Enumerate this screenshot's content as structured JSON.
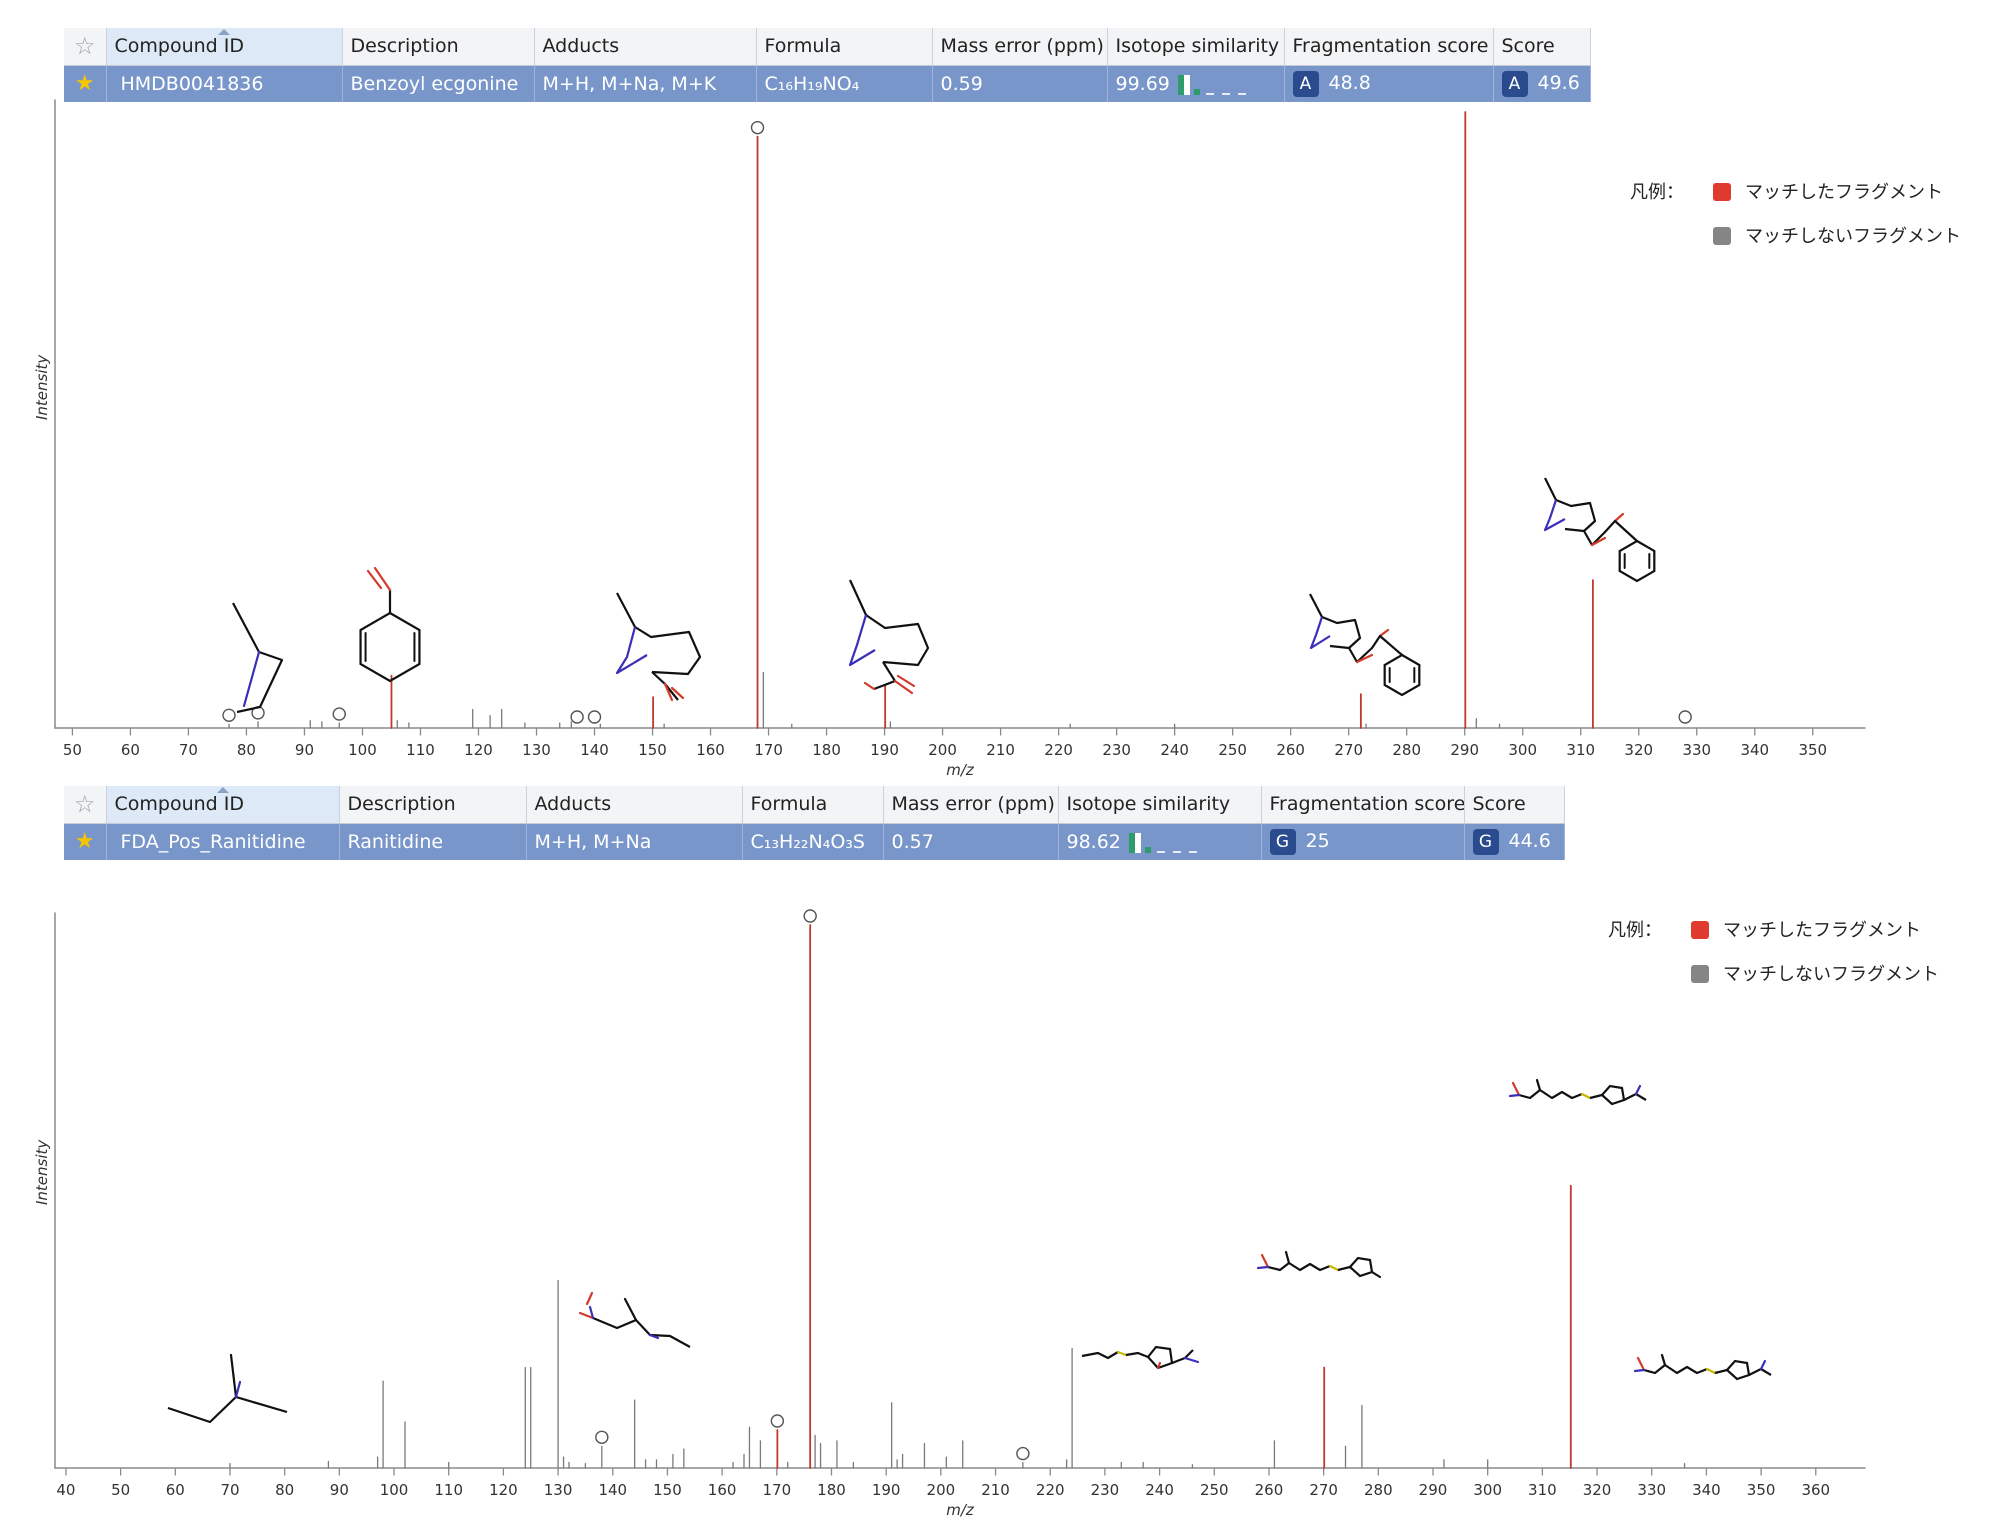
{
  "colors": {
    "matched": "#c0392b",
    "unmatched": "#7a7a7a",
    "legend_matched": "#e03a2f",
    "legend_unmatched": "#858585",
    "header_bg": "#f3f4f6",
    "row_bg": "#7896c9",
    "badge_bg": "#2a4c8e",
    "star": "#f6c400"
  },
  "columns": [
    "Compound ID",
    "Description",
    "Adducts",
    "Formula",
    "Mass error (ppm)",
    "Isotope similarity",
    "Fragmentation score",
    "Score"
  ],
  "legend": {
    "title": "凡例：",
    "matched": "マッチしたフラグメント",
    "unmatched": "マッチしないフラグメント"
  },
  "panels": [
    {
      "compound": {
        "id": "HMDB0041836",
        "description": "Benzoyl ecgonine",
        "adducts": "M+H, M+Na, M+K",
        "formula": "C₁₆H₁₉NO₄",
        "mass_error": "0.59",
        "isotope_similarity": "99.69",
        "frag_grade": "A",
        "frag_score": "48.8",
        "score_grade": "A",
        "score": "49.6"
      }
    },
    {
      "compound": {
        "id": "FDA_Pos_Ranitidine",
        "description": "Ranitidine",
        "adducts": "M+H, M+Na",
        "formula": "C₁₃H₂₂N₄O₃S",
        "mass_error": "0.57",
        "isotope_similarity": "98.62",
        "frag_grade": "G",
        "frag_score": "25",
        "score_grade": "G",
        "score": "44.6"
      }
    }
  ],
  "chart_data": [
    {
      "type": "bar",
      "xlabel": "m/z",
      "ylabel": "Intensity",
      "xlim": [
        47,
        359
      ],
      "ylim": [
        0,
        100
      ],
      "ticks": [
        50,
        60,
        70,
        80,
        90,
        100,
        110,
        120,
        130,
        140,
        150,
        160,
        170,
        180,
        190,
        200,
        210,
        220,
        230,
        240,
        250,
        260,
        270,
        280,
        290,
        300,
        310,
        320,
        330,
        340,
        350
      ],
      "matched": [
        {
          "mz": 105.0,
          "y": 8.5
        },
        {
          "mz": 150.1,
          "y": 5
        },
        {
          "mz": 168.1,
          "y": 96
        },
        {
          "mz": 190.1,
          "y": 7
        },
        {
          "mz": 272.1,
          "y": 5.5
        },
        {
          "mz": 290.1,
          "y": 100
        },
        {
          "mz": 312.1,
          "y": 24
        }
      ],
      "unmatched": [
        {
          "mz": 77,
          "y": 0.6
        },
        {
          "mz": 82,
          "y": 1
        },
        {
          "mz": 91,
          "y": 1.2
        },
        {
          "mz": 93,
          "y": 1
        },
        {
          "mz": 96,
          "y": 0.8
        },
        {
          "mz": 106,
          "y": 1.2
        },
        {
          "mz": 108,
          "y": 0.8
        },
        {
          "mz": 119,
          "y": 3
        },
        {
          "mz": 122,
          "y": 2
        },
        {
          "mz": 124,
          "y": 3
        },
        {
          "mz": 128,
          "y": 0.8
        },
        {
          "mz": 134,
          "y": 0.8
        },
        {
          "mz": 136,
          "y": 1
        },
        {
          "mz": 141,
          "y": 0.6
        },
        {
          "mz": 152,
          "y": 0.6
        },
        {
          "mz": 169.1,
          "y": 9
        },
        {
          "mz": 174,
          "y": 0.6
        },
        {
          "mz": 191,
          "y": 1
        },
        {
          "mz": 222,
          "y": 0.6
        },
        {
          "mz": 240,
          "y": 0.6
        },
        {
          "mz": 273,
          "y": 0.6
        },
        {
          "mz": 292,
          "y": 1.5
        },
        {
          "mz": 296,
          "y": 0.6
        }
      ],
      "markers": [
        77.0,
        82.0,
        96.0,
        137.0,
        140.0,
        168.1,
        328.0
      ]
    },
    {
      "type": "bar",
      "xlabel": "m/z",
      "ylabel": "Intensity",
      "xlim": [
        38,
        369
      ],
      "ylim": [
        0,
        100
      ],
      "ticks": [
        40,
        50,
        60,
        70,
        80,
        90,
        100,
        110,
        120,
        130,
        140,
        150,
        160,
        170,
        180,
        190,
        200,
        210,
        220,
        230,
        240,
        250,
        260,
        270,
        280,
        290,
        300,
        310,
        320,
        330,
        340,
        350,
        360
      ],
      "matched": [
        {
          "mz": 170.1,
          "y": 7
        },
        {
          "mz": 176.1,
          "y": 100
        },
        {
          "mz": 270.1,
          "y": 18.5
        },
        {
          "mz": 315.2,
          "y": 52
        }
      ],
      "unmatched": [
        {
          "mz": 70,
          "y": 0.8
        },
        {
          "mz": 88,
          "y": 1.2
        },
        {
          "mz": 97,
          "y": 2
        },
        {
          "mz": 98,
          "y": 16
        },
        {
          "mz": 102,
          "y": 8.5
        },
        {
          "mz": 110,
          "y": 1
        },
        {
          "mz": 124,
          "y": 18.5
        },
        {
          "mz": 125,
          "y": 18.5
        },
        {
          "mz": 130,
          "y": 34.5
        },
        {
          "mz": 131,
          "y": 2
        },
        {
          "mz": 132,
          "y": 1
        },
        {
          "mz": 135,
          "y": 0.8
        },
        {
          "mz": 138,
          "y": 4
        },
        {
          "mz": 144,
          "y": 12.5
        },
        {
          "mz": 146,
          "y": 1.5
        },
        {
          "mz": 148,
          "y": 1.5
        },
        {
          "mz": 151,
          "y": 2.5
        },
        {
          "mz": 153,
          "y": 3.5
        },
        {
          "mz": 162,
          "y": 1
        },
        {
          "mz": 164,
          "y": 2.5
        },
        {
          "mz": 165,
          "y": 7.5
        },
        {
          "mz": 167,
          "y": 5
        },
        {
          "mz": 172,
          "y": 1
        },
        {
          "mz": 177,
          "y": 6
        },
        {
          "mz": 178,
          "y": 4.5
        },
        {
          "mz": 181,
          "y": 5
        },
        {
          "mz": 184,
          "y": 1
        },
        {
          "mz": 191,
          "y": 12
        },
        {
          "mz": 192,
          "y": 1.5
        },
        {
          "mz": 193,
          "y": 2.5
        },
        {
          "mz": 197,
          "y": 4.5
        },
        {
          "mz": 201,
          "y": 2
        },
        {
          "mz": 204,
          "y": 5
        },
        {
          "mz": 215,
          "y": 1
        },
        {
          "mz": 223,
          "y": 1.5
        },
        {
          "mz": 224,
          "y": 22
        },
        {
          "mz": 233,
          "y": 1
        },
        {
          "mz": 237,
          "y": 1
        },
        {
          "mz": 246,
          "y": 0.6
        },
        {
          "mz": 261,
          "y": 5
        },
        {
          "mz": 274,
          "y": 4
        },
        {
          "mz": 277,
          "y": 11.5
        },
        {
          "mz": 292,
          "y": 1.5
        },
        {
          "mz": 300,
          "y": 1.5
        },
        {
          "mz": 336,
          "y": 0.8
        }
      ],
      "markers": [
        138.0,
        170.1,
        176.1,
        215.0
      ]
    }
  ]
}
